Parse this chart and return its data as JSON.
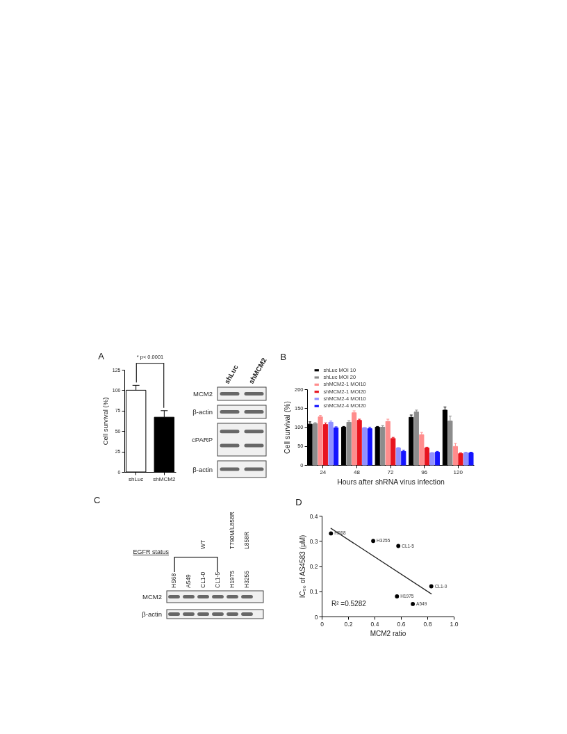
{
  "chart_data": [
    {
      "type": "bar",
      "title": "A",
      "categories": [
        "shLuc",
        "shMCM2"
      ],
      "values": [
        100,
        67
      ],
      "colors": [
        "#ffffff",
        "#000000"
      ],
      "errors": [
        [
          100,
          106
        ],
        [
          67,
          75
        ]
      ],
      "ylim": [
        0,
        125
      ],
      "yticks": [
        0,
        25,
        50,
        75,
        100,
        125
      ],
      "ylabel": "Cell survival (%)",
      "annotations": [
        "* p< 0.0001"
      ]
    },
    {
      "type": "other",
      "categories": [
        "shLuc",
        "shMCM2"
      ],
      "y_categories": [
        "MCM2",
        "β-actin",
        "cPARP",
        "β-actin"
      ]
    },
    {
      "type": "bar",
      "title": "B",
      "categories": [
        "24",
        "48",
        "72",
        "96",
        "120"
      ],
      "series": [
        {
          "name": "shLuc MOI 10",
          "color": "#000000",
          "values": [
            108,
            100,
            100,
            126,
            145
          ],
          "errors": [
            [
              108,
              114
            ],
            [
              100,
              102
            ],
            [
              100,
              102
            ],
            [
              126,
              132
            ],
            [
              145,
              153
            ]
          ]
        },
        {
          "name": "shLuc MOI 20",
          "color": "#8c8c8c",
          "values": [
            109,
            113,
            100,
            140,
            116
          ],
          "errors": [
            [
              109,
              112
            ],
            [
              113,
              117
            ],
            [
              100,
              104
            ],
            [
              140,
              145
            ],
            [
              116,
              129
            ]
          ]
        },
        {
          "name": "shMCM2-1 MOI10",
          "color": "#ff8c8c",
          "values": [
            127,
            138,
            115,
            80,
            49
          ],
          "errors": [
            [
              127,
              131
            ],
            [
              138,
              143
            ],
            [
              115,
              121
            ],
            [
              80,
              86
            ],
            [
              49,
              57
            ]
          ]
        },
        {
          "name": "shMCM2-1 MOI20",
          "color": "#e8141e",
          "values": [
            107,
            118,
            70,
            45,
            30
          ],
          "errors": [
            [
              107,
              111
            ],
            [
              118,
              121
            ],
            [
              70,
              73
            ],
            [
              45,
              47
            ],
            [
              30,
              32
            ]
          ]
        },
        {
          "name": "shMCM2-4 MOI10",
          "color": "#9090ff",
          "values": [
            113,
            98,
            45,
            32,
            32
          ],
          "errors": [
            [
              113,
              116
            ],
            [
              98,
              99
            ],
            [
              45,
              46
            ],
            [
              32,
              33
            ],
            [
              32,
              34
            ]
          ]
        },
        {
          "name": "shMCM2-4 MOI20",
          "color": "#1414ff",
          "values": [
            98,
            96,
            36,
            34,
            32
          ],
          "errors": [
            [
              98,
              101
            ],
            [
              96,
              100
            ],
            [
              36,
              39
            ],
            [
              34,
              36
            ],
            [
              32,
              34
            ]
          ]
        }
      ],
      "ylim": [
        0,
        200
      ],
      "yticks": [
        0,
        50,
        100,
        150,
        200
      ],
      "xlabel": "Hours after shRNA virus infection",
      "ylabel": "Cell survival (%)",
      "legend": "top left"
    },
    {
      "type": "other",
      "title": "C",
      "categories": [
        "HS68",
        "A549",
        "CL1-0",
        "CL1-5",
        "H1975",
        "H3255"
      ],
      "y_categories": [
        "MCM2",
        "β-actin"
      ],
      "annotations": [
        "EGFR status",
        {
          "text": "WT",
          "x": "CL1-0"
        },
        {
          "text": "T790M/L858R",
          "x": "H1975"
        },
        {
          "text": "L858R",
          "x": "H3255"
        }
      ]
    },
    {
      "type": "scatter",
      "title": "D",
      "series": [
        {
          "type": "scatter",
          "marker": "circle",
          "color": "#000000",
          "x": [
            0.07,
            0.39,
            0.58,
            0.83,
            0.57,
            0.69
          ],
          "values": [
            0.33,
            0.3,
            0.28,
            0.12,
            0.08,
            0.05
          ]
        },
        {
          "type": "line",
          "color": "#262626",
          "x": [
            0.07,
            0.83
          ],
          "values": [
            0.35,
            0.09
          ]
        }
      ],
      "xlim": [
        0,
        1
      ],
      "ylim": [
        0,
        0.4
      ],
      "xticks": [
        0,
        0.2,
        0.4,
        0.6,
        0.8,
        {
          "value": 1,
          "label": "1.0"
        }
      ],
      "yticks": [
        0,
        0.1,
        0.2,
        0.3,
        0.4
      ],
      "xlabel": "MCM2 ratio",
      "ylabel": "IC₅₀ of AS4583 (μM)",
      "annotations": [
        {
          "text": "HS68",
          "x": 0.07,
          "y": 0.33
        },
        {
          "text": "H3255",
          "x": 0.39,
          "y": 0.3
        },
        {
          "text": "CL1-5",
          "x": 0.58,
          "y": 0.28
        },
        {
          "text": "CL1-0",
          "x": 0.83,
          "y": 0.12
        },
        {
          "text": "H1975",
          "x": 0.57,
          "y": 0.08
        },
        {
          "text": "A549",
          "x": 0.69,
          "y": 0.05
        },
        "R² =0.5282"
      ]
    }
  ]
}
